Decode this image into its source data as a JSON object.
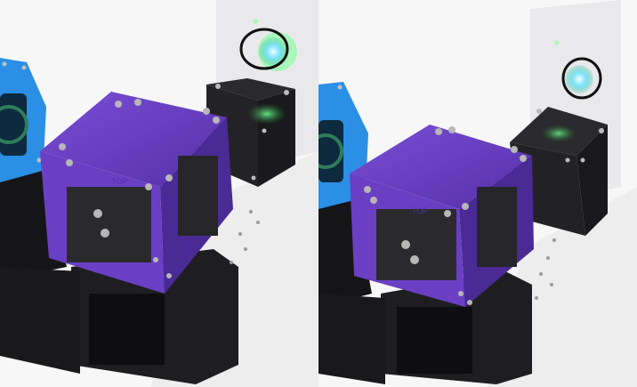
{
  "image": {
    "panels": [
      {
        "view": "left",
        "beam_spot_color": "#5fd6ff",
        "marker_color": "#111111"
      },
      {
        "view": "right",
        "beam_spot_color": "#5fd6ff",
        "marker_color": "#111111"
      }
    ],
    "colors": {
      "purple_cube": "#6a3fc4",
      "blue_cube": "#2b8fe6",
      "black_cube": "#1c1c1e",
      "screen": "#eeeef0",
      "table": "#f4f4f4",
      "laser": "#4dff7a"
    },
    "embossed_text": {
      "top_label": "TOP"
    }
  }
}
